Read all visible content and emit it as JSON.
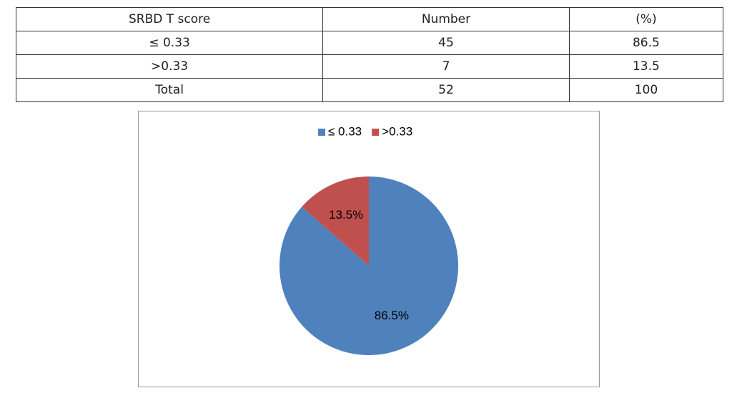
{
  "table": {
    "header": [
      "SRBD T score",
      "Number",
      "(%)"
    ],
    "rows": [
      [
        "≤ 0.33",
        "45",
        "86.5"
      ],
      [
        ">0.33",
        "7",
        "13.5"
      ],
      [
        "Total",
        "52",
        "100"
      ]
    ]
  },
  "chart_data": {
    "type": "pie",
    "categories": [
      "≤ 0.33",
      ">0.33"
    ],
    "values": [
      86.5,
      13.5
    ],
    "value_labels": [
      "86.5%",
      "13.5%"
    ],
    "colors": [
      "#4f81bd",
      "#c0504d"
    ],
    "legend": "top"
  }
}
